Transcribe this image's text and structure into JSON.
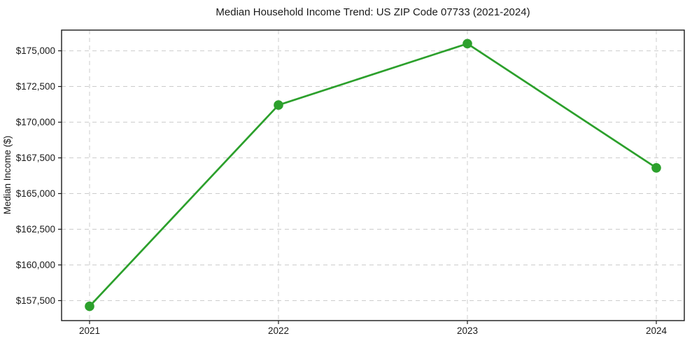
{
  "figure": {
    "title": "Median Household Income Trend: US ZIP Code 07733 (2021-2024)",
    "ylabel": "Median Income ($)"
  },
  "chart_data": {
    "type": "line",
    "title": "Median Household Income Trend: US ZIP Code 07733 (2021-2024)",
    "xlabel": "",
    "ylabel": "Median Income ($)",
    "categories": [
      "2021",
      "2022",
      "2023",
      "2024"
    ],
    "values": [
      157100,
      171200,
      175500,
      166800
    ],
    "y_ticks": [
      157500,
      160000,
      162500,
      165000,
      167500,
      170000,
      172500,
      175000
    ],
    "y_tick_labels": [
      "$157,500",
      "$160,000",
      "$162,500",
      "$165,000",
      "$167,500",
      "$170,000",
      "$172,500",
      "$175,000"
    ],
    "ylim": [
      156100,
      176450
    ],
    "grid": true,
    "grid_style": "dashed",
    "legend": "none",
    "line_color": "#2ca02c",
    "marker_color": "#2ca02c",
    "grid_color": "#cccccc",
    "text_color": "#1a1a1a"
  }
}
